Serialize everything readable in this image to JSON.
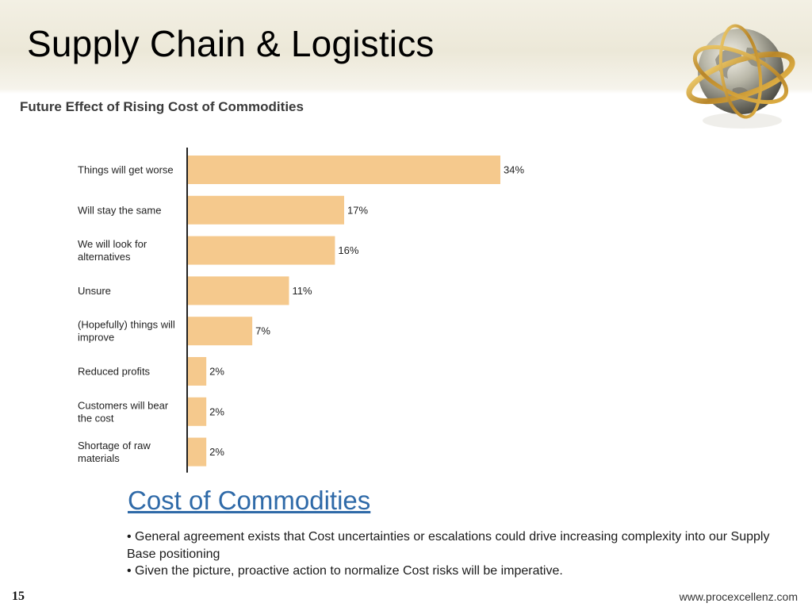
{
  "slide": {
    "title": "Supply Chain & Logistics",
    "page_number": "15",
    "footer_url": "www.procexcellenz.com"
  },
  "section": {
    "heading": "Cost of Commodities",
    "bullets": [
      "• General agreement exists that Cost uncertainties or escalations could drive increasing complexity into our Supply Base positioning",
      "• Given the picture, proactive action to normalize Cost risks will be imperative."
    ]
  },
  "colors": {
    "bar": "#f5c98d",
    "axis": "#222222",
    "heading_link": "#2f6aa8"
  },
  "chart_data": {
    "type": "bar",
    "orientation": "horizontal",
    "title": "Future Effect of Rising Cost of Commodities",
    "categories": [
      [
        "Things will get worse"
      ],
      [
        "Will stay the same"
      ],
      [
        "We will look for",
        "alternatives"
      ],
      [
        "Unsure"
      ],
      [
        "(Hopefully) things will",
        "improve"
      ],
      [
        "Reduced profits"
      ],
      [
        "Customers will bear",
        "the cost"
      ],
      [
        "Shortage of raw",
        "materials"
      ]
    ],
    "values": [
      34,
      17,
      16,
      11,
      7,
      2,
      2,
      2
    ],
    "value_labels": [
      "34%",
      "17%",
      "16%",
      "11%",
      "7%",
      "2%",
      "2%",
      "2%"
    ],
    "unit": "%",
    "xlim": [
      0,
      34
    ],
    "grid": false,
    "legend": false
  }
}
